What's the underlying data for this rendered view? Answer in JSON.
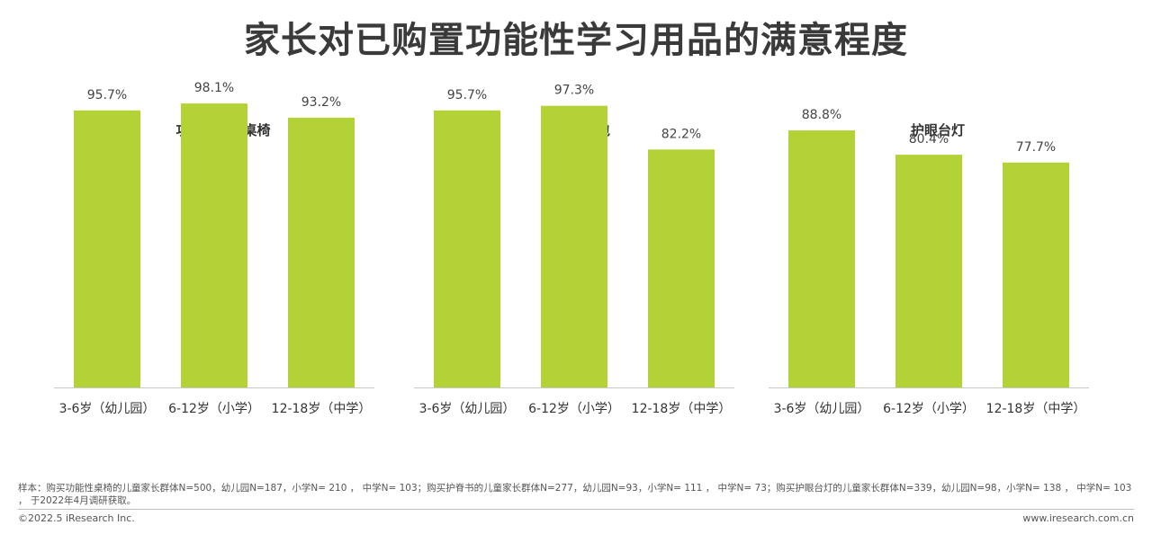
{
  "page": {
    "title": "家长对已购置功能性学习用品的满意程度"
  },
  "colors": {
    "bar": "#b2d235",
    "axis": "#c8c8c8"
  },
  "chart_data": [
    {
      "type": "bar",
      "title": "功能性学习桌椅",
      "categories": [
        "3-6岁（幼儿园）",
        "6-12岁（小学）",
        "12-18岁（中学）"
      ],
      "values": [
        95.7,
        98.1,
        93.2
      ],
      "value_labels": [
        "95.7%",
        "98.1%",
        "93.2%"
      ],
      "ylim": [
        0,
        100
      ],
      "grid": false,
      "legend": "none"
    },
    {
      "type": "bar",
      "title": "护脊书包",
      "categories": [
        "3-6岁（幼儿园）",
        "6-12岁（小学）",
        "12-18岁（中学）"
      ],
      "values": [
        95.7,
        97.3,
        82.2
      ],
      "value_labels": [
        "95.7%",
        "97.3%",
        "82.2%"
      ],
      "ylim": [
        0,
        100
      ],
      "grid": false,
      "legend": "none"
    },
    {
      "type": "bar",
      "title": "护眼台灯",
      "categories": [
        "3-6岁（幼儿园）",
        "6-12岁（小学）",
        "12-18岁（中学）"
      ],
      "values": [
        88.8,
        80.4,
        77.7
      ],
      "value_labels": [
        "88.8%",
        "80.4%",
        "77.7%"
      ],
      "ylim": [
        0,
        100
      ],
      "grid": false,
      "legend": "none"
    }
  ],
  "footer": {
    "note": "样本：购买功能性桌椅的儿童家长群体N=500，幼儿园N=187，小学N= 210 ， 中学N= 103；购买护脊书的儿童家长群体N=277，幼儿园N=93，小学N= 111 ， 中学N= 73；购买护眼台灯的儿童家长群体N=339，幼儿园N=98，小学N= 138 ， 中学N= 103 ， 于2022年4月调研获取。",
    "copyright": "©2022.5 iResearch Inc.",
    "url": "www.iresearch.com.cn"
  }
}
